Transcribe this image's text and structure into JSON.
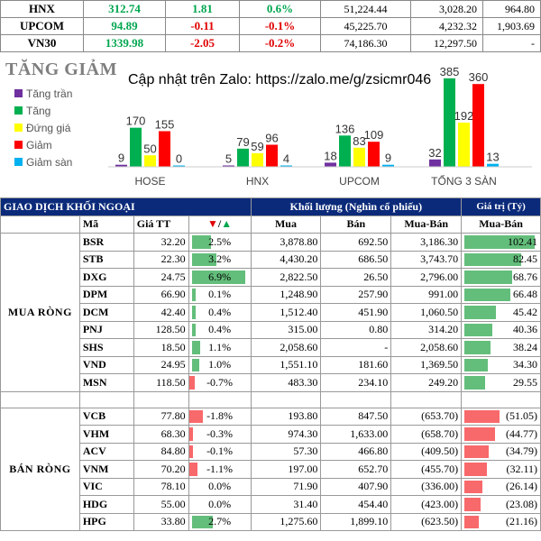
{
  "indices": [
    {
      "name": "HNX",
      "price": "312.74",
      "change": "1.81",
      "pct": "0.6%",
      "vol": "51,224.44",
      "val1": "3,028.20",
      "val2": "964.80",
      "dir": "pos"
    },
    {
      "name": "UPCOM",
      "price": "94.89",
      "change": "-0.11",
      "pct": "-0.1%",
      "vol": "45,225.70",
      "val1": "4,232.32",
      "val2": "1,903.69",
      "dir": "neg"
    },
    {
      "name": "VN30",
      "price": "1339.98",
      "change": "-2.05",
      "pct": "-0.2%",
      "vol": "74,186.30",
      "val1": "12,297.50",
      "val2": "-",
      "dir": "neg"
    }
  ],
  "chart": {
    "title": "TĂNG GIẢM",
    "note": "Cập nhật trên Zalo: https://zalo.me/g/zsicmr046",
    "legend": [
      {
        "label": "Tăng trần",
        "color": "#7030a0"
      },
      {
        "label": "Tăng",
        "color": "#00b050"
      },
      {
        "label": "Đứng giá",
        "color": "#ffff00"
      },
      {
        "label": "Giảm",
        "color": "#ff0000"
      },
      {
        "label": "Giảm sàn",
        "color": "#00b0f0"
      }
    ]
  },
  "chart_data": {
    "type": "bar",
    "categories": [
      "HOSE",
      "HNX",
      "UPCOM",
      "TỔNG 3 SÀN"
    ],
    "series": [
      {
        "name": "Tăng trần",
        "color": "#7030a0",
        "values": [
          9,
          5,
          18,
          32
        ]
      },
      {
        "name": "Tăng",
        "color": "#00b050",
        "values": [
          170,
          79,
          136,
          385
        ]
      },
      {
        "name": "Đứng giá",
        "color": "#ffff00",
        "values": [
          50,
          59,
          83,
          192
        ]
      },
      {
        "name": "Giảm",
        "color": "#ff0000",
        "values": [
          155,
          96,
          109,
          360
        ]
      },
      {
        "name": "Giảm sàn",
        "color": "#00b0f0",
        "values": [
          0,
          4,
          9,
          13
        ]
      }
    ]
  },
  "foreign": {
    "title": "GIAO DỊCH KHỐI NGOẠI",
    "vol_header": "Khối lượng (Nghìn cổ phiếu)",
    "val_header": "Giá trị (Tỷ)",
    "col_ma": "Mã",
    "col_price": "Giá TT",
    "col_chg": "▼/▲",
    "col_buy": "Mua",
    "col_sell": "Bán",
    "col_net": "Mua-Bán",
    "col_netval": "Mua-Bán",
    "buy_label": "MUA RÒNG",
    "sell_label": "BÁN RÒNG",
    "buy_rows": [
      {
        "tk": "BSR",
        "price": "32.20",
        "chg": "2.5%",
        "chg_v": 2.5,
        "buy": "3,878.80",
        "sell": "692.50",
        "net": "3,186.30",
        "val": "102.41",
        "val_v": 102.41
      },
      {
        "tk": "STB",
        "price": "22.30",
        "chg": "3.2%",
        "chg_v": 3.2,
        "buy": "4,430.20",
        "sell": "686.50",
        "net": "3,743.70",
        "val": "82.45",
        "val_v": 82.45
      },
      {
        "tk": "DXG",
        "price": "24.75",
        "chg": "6.9%",
        "chg_v": 6.9,
        "buy": "2,822.50",
        "sell": "26.50",
        "net": "2,796.00",
        "val": "68.76",
        "val_v": 68.76
      },
      {
        "tk": "DPM",
        "price": "66.90",
        "chg": "0.1%",
        "chg_v": 0.1,
        "buy": "1,248.90",
        "sell": "257.90",
        "net": "991.00",
        "val": "66.48",
        "val_v": 66.48
      },
      {
        "tk": "DCM",
        "price": "42.40",
        "chg": "0.4%",
        "chg_v": 0.4,
        "buy": "1,512.40",
        "sell": "451.90",
        "net": "1,060.50",
        "val": "45.42",
        "val_v": 45.42
      },
      {
        "tk": "PNJ",
        "price": "128.50",
        "chg": "0.4%",
        "chg_v": 0.4,
        "buy": "315.00",
        "sell": "0.80",
        "net": "314.20",
        "val": "40.36",
        "val_v": 40.36
      },
      {
        "tk": "SHS",
        "price": "18.50",
        "chg": "1.1%",
        "chg_v": 1.1,
        "buy": "2,058.60",
        "sell": "-",
        "net": "2,058.60",
        "val": "38.24",
        "val_v": 38.24
      },
      {
        "tk": "VND",
        "price": "24.95",
        "chg": "1.0%",
        "chg_v": 1.0,
        "buy": "1,551.10",
        "sell": "181.60",
        "net": "1,369.50",
        "val": "34.30",
        "val_v": 34.3
      },
      {
        "tk": "MSN",
        "price": "118.50",
        "chg": "-0.7%",
        "chg_v": -0.7,
        "buy": "483.30",
        "sell": "234.10",
        "net": "249.20",
        "val": "29.55",
        "val_v": 29.55
      }
    ],
    "sell_rows": [
      {
        "tk": "VCB",
        "price": "77.80",
        "chg": "-1.8%",
        "chg_v": -1.8,
        "buy": "193.80",
        "sell": "847.50",
        "net": "(653.70)",
        "val": "(51.05)",
        "val_v": -51.05
      },
      {
        "tk": "VHM",
        "price": "68.30",
        "chg": "-0.3%",
        "chg_v": -0.3,
        "buy": "974.30",
        "sell": "1,633.00",
        "net": "(658.70)",
        "val": "(44.77)",
        "val_v": -44.77
      },
      {
        "tk": "ACV",
        "price": "84.80",
        "chg": "-0.1%",
        "chg_v": -0.1,
        "buy": "57.30",
        "sell": "466.80",
        "net": "(409.50)",
        "val": "(34.79)",
        "val_v": -34.79
      },
      {
        "tk": "VNM",
        "price": "70.20",
        "chg": "-1.1%",
        "chg_v": -1.1,
        "buy": "197.00",
        "sell": "652.70",
        "net": "(455.70)",
        "val": "(32.11)",
        "val_v": -32.11
      },
      {
        "tk": "VIC",
        "price": "78.10",
        "chg": "0.0%",
        "chg_v": 0.0,
        "buy": "71.90",
        "sell": "407.90",
        "net": "(336.00)",
        "val": "(26.14)",
        "val_v": -26.14
      },
      {
        "tk": "HDG",
        "price": "55.00",
        "chg": "0.0%",
        "chg_v": 0.0,
        "buy": "31.40",
        "sell": "454.40",
        "net": "(423.00)",
        "val": "(23.08)",
        "val_v": -23.08
      },
      {
        "tk": "HPG",
        "price": "33.80",
        "chg": "2.7%",
        "chg_v": 2.7,
        "buy": "1,275.60",
        "sell": "1,899.10",
        "net": "(623.50)",
        "val": "(21.16)",
        "val_v": -21.16
      }
    ]
  }
}
